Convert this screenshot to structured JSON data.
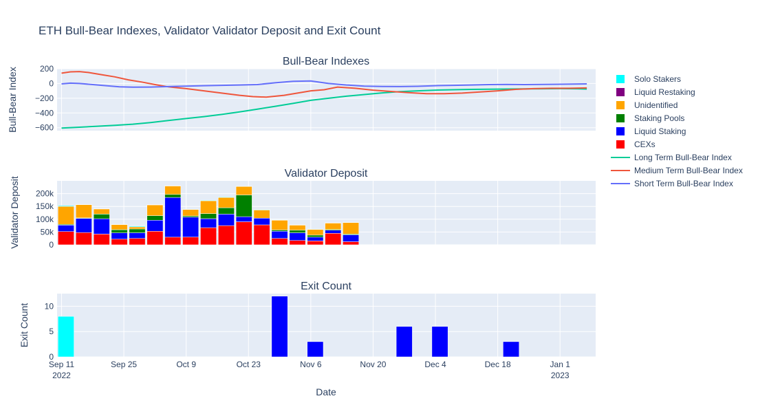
{
  "title": "ETH Bull-Bear Indexes, Validator Validator Deposit and Exit Count",
  "xlabel": "Date",
  "x_ticks": [
    {
      "date": "2022-09-11",
      "line1": "Sep 11",
      "line2": "2022"
    },
    {
      "date": "2022-09-25",
      "line1": "Sep 25",
      "line2": ""
    },
    {
      "date": "2022-10-09",
      "line1": "Oct 9",
      "line2": ""
    },
    {
      "date": "2022-10-23",
      "line1": "Oct 23",
      "line2": ""
    },
    {
      "date": "2022-11-06",
      "line1": "Nov 6",
      "line2": ""
    },
    {
      "date": "2022-11-20",
      "line1": "Nov 20",
      "line2": ""
    },
    {
      "date": "2022-12-04",
      "line1": "Dec 4",
      "line2": ""
    },
    {
      "date": "2022-12-18",
      "line1": "Dec 18",
      "line2": ""
    },
    {
      "date": "2023-01-01",
      "line1": "Jan 1",
      "line2": "2023"
    }
  ],
  "legend": [
    {
      "label": "Solo Stakers",
      "kind": "box",
      "color": "#00ffff"
    },
    {
      "label": "Liquid Restaking",
      "kind": "box",
      "color": "#800080"
    },
    {
      "label": "Unidentified",
      "kind": "box",
      "color": "#ffa500"
    },
    {
      "label": "Staking Pools",
      "kind": "box",
      "color": "#008000"
    },
    {
      "label": "Liquid Staking",
      "kind": "box",
      "color": "#0000ff"
    },
    {
      "label": "CEXs",
      "kind": "box",
      "color": "#ff0000"
    },
    {
      "label": "Long Term Bull-Bear Index",
      "kind": "line",
      "color": "#00cc96"
    },
    {
      "label": "Medium Term Bull-Bear Index",
      "kind": "line",
      "color": "#ef553b"
    },
    {
      "label": "Short Term Bull-Bear Index",
      "kind": "line",
      "color": "#636efa"
    }
  ],
  "chart_data": [
    {
      "type": "line",
      "title": "Bull-Bear Indexes",
      "ylabel": "Bull-Bear Index",
      "ylim": [
        -640,
        200
      ],
      "yticks": [
        200,
        0,
        -200,
        -400,
        -600
      ],
      "grid": true,
      "series": [
        {
          "name": "Long Term Bull-Bear Index",
          "color": "#00cc96",
          "x": [
            "2022-09-11",
            "2022-09-15",
            "2022-09-19",
            "2022-09-23",
            "2022-09-27",
            "2022-10-01",
            "2022-10-05",
            "2022-10-09",
            "2022-10-13",
            "2022-10-17",
            "2022-10-21",
            "2022-10-25",
            "2022-10-29",
            "2022-11-02",
            "2022-11-06",
            "2022-11-10",
            "2022-11-14",
            "2022-11-18",
            "2022-11-22",
            "2022-11-26",
            "2022-11-30",
            "2022-12-04",
            "2022-12-08",
            "2022-12-12",
            "2022-12-16",
            "2022-12-20",
            "2022-12-24",
            "2022-12-28",
            "2023-01-01",
            "2023-01-05",
            "2023-01-07"
          ],
          "values": [
            -605,
            -593,
            -580,
            -568,
            -552,
            -530,
            -503,
            -476,
            -450,
            -420,
            -385,
            -348,
            -310,
            -270,
            -228,
            -200,
            -172,
            -150,
            -128,
            -110,
            -100,
            -90,
            -85,
            -80,
            -78,
            -75,
            -73,
            -72,
            -70,
            -72,
            -75
          ]
        },
        {
          "name": "Medium Term Bull-Bear Index",
          "color": "#ef553b",
          "x": [
            "2022-09-11",
            "2022-09-13",
            "2022-09-15",
            "2022-09-17",
            "2022-09-20",
            "2022-09-23",
            "2022-09-26",
            "2022-09-29",
            "2022-10-02",
            "2022-10-05",
            "2022-10-09",
            "2022-10-13",
            "2022-10-17",
            "2022-10-21",
            "2022-10-24",
            "2022-10-27",
            "2022-10-31",
            "2022-11-03",
            "2022-11-06",
            "2022-11-09",
            "2022-11-12",
            "2022-11-16",
            "2022-11-20",
            "2022-11-24",
            "2022-11-28",
            "2022-12-02",
            "2022-12-06",
            "2022-12-10",
            "2022-12-14",
            "2022-12-18",
            "2022-12-22",
            "2022-12-26",
            "2022-12-30",
            "2023-01-03",
            "2023-01-07"
          ],
          "values": [
            140,
            158,
            162,
            150,
            120,
            90,
            50,
            20,
            -15,
            -45,
            -70,
            -100,
            -130,
            -160,
            -178,
            -185,
            -160,
            -130,
            -100,
            -85,
            -48,
            -65,
            -90,
            -108,
            -125,
            -138,
            -138,
            -130,
            -115,
            -100,
            -80,
            -70,
            -65,
            -65,
            -60
          ]
        },
        {
          "name": "Short Term Bull-Bear Index",
          "color": "#636efa",
          "x": [
            "2022-09-11",
            "2022-09-13",
            "2022-09-15",
            "2022-09-18",
            "2022-09-21",
            "2022-09-24",
            "2022-09-27",
            "2022-10-01",
            "2022-10-05",
            "2022-10-09",
            "2022-10-13",
            "2022-10-17",
            "2022-10-21",
            "2022-10-25",
            "2022-10-29",
            "2022-11-02",
            "2022-11-06",
            "2022-11-10",
            "2022-11-14",
            "2022-11-18",
            "2022-11-22",
            "2022-11-26",
            "2022-11-30",
            "2022-12-04",
            "2022-12-08",
            "2022-12-12",
            "2022-12-16",
            "2022-12-20",
            "2022-12-24",
            "2022-12-28",
            "2023-01-01",
            "2023-01-04",
            "2023-01-07"
          ],
          "values": [
            -5,
            5,
            0,
            -15,
            -30,
            -45,
            -50,
            -48,
            -42,
            -35,
            -30,
            -25,
            -20,
            -15,
            10,
            30,
            35,
            0,
            -20,
            -35,
            -40,
            -42,
            -38,
            -30,
            -25,
            -20,
            -15,
            -12,
            -15,
            -12,
            -10,
            -8,
            -5
          ]
        }
      ]
    },
    {
      "type": "bar",
      "stacked": true,
      "title": "Validator Deposit",
      "ylabel": "Validator Deposit",
      "ylim": [
        0,
        250000
      ],
      "yticks": [
        0,
        50000,
        100000,
        150000,
        200000
      ],
      "ytick_labels": [
        "0",
        "50k",
        "100k",
        "150k",
        "200k"
      ],
      "grid": true,
      "categories": [
        "2022-09-12",
        "2022-09-16",
        "2022-09-20",
        "2022-09-24",
        "2022-09-28",
        "2022-10-02",
        "2022-10-06",
        "2022-10-10",
        "2022-10-14",
        "2022-10-18",
        "2022-10-22",
        "2022-10-26",
        "2022-10-30",
        "2022-11-03",
        "2022-11-07",
        "2022-11-11",
        "2022-11-15",
        "2022-11-19",
        "2022-11-23",
        "2022-11-27",
        "2022-12-01",
        "2022-12-05",
        "2022-12-09",
        "2022-12-13",
        "2022-12-17",
        "2022-12-21",
        "2022-12-25",
        "2022-12-29",
        "2023-01-02"
      ],
      "series": [
        {
          "name": "CEXs",
          "color": "#ff0000",
          "values": [
            52000,
            48000,
            42000,
            22000,
            25000,
            53000,
            30000,
            30000,
            67000,
            75000,
            90000,
            78000,
            25000,
            17000,
            15000,
            45000,
            12000,
            0,
            0,
            0,
            0,
            0,
            0,
            0,
            0,
            0,
            0,
            0,
            0
          ]
        },
        {
          "name": "Liquid Staking",
          "color": "#0000ff",
          "values": [
            25000,
            55000,
            60000,
            25000,
            22000,
            43000,
            155000,
            78000,
            35000,
            45000,
            20000,
            26000,
            28000,
            30000,
            15000,
            12000,
            27000,
            0,
            0,
            0,
            0,
            0,
            0,
            0,
            0,
            0,
            0,
            0,
            0
          ]
        },
        {
          "name": "Staking Pools",
          "color": "#008000",
          "values": [
            3000,
            2000,
            18000,
            12000,
            15000,
            18000,
            12000,
            5000,
            20000,
            25000,
            85000,
            0,
            5000,
            10000,
            8000,
            3000,
            3000,
            0,
            0,
            0,
            0,
            0,
            0,
            0,
            0,
            0,
            0,
            0,
            0
          ]
        },
        {
          "name": "Unidentified",
          "color": "#ffa500",
          "values": [
            70000,
            52000,
            20000,
            20000,
            8000,
            42000,
            33000,
            25000,
            50000,
            40000,
            33000,
            32000,
            38000,
            20000,
            22000,
            25000,
            45000,
            0,
            0,
            0,
            0,
            0,
            0,
            0,
            0,
            0,
            0,
            0,
            0
          ]
        },
        {
          "name": "Liquid Restaking",
          "color": "#800080",
          "values": [
            0,
            0,
            0,
            0,
            0,
            0,
            0,
            0,
            0,
            0,
            0,
            0,
            0,
            0,
            0,
            0,
            0,
            0,
            0,
            0,
            0,
            0,
            0,
            0,
            0,
            0,
            0,
            0,
            0
          ]
        },
        {
          "name": "Solo Stakers",
          "color": "#00ffff",
          "values": [
            3000,
            1000,
            1000,
            1000,
            3000,
            1000,
            1000,
            1000,
            2000,
            2000,
            1000,
            2000,
            1000,
            1000,
            1000,
            1000,
            1000,
            0,
            0,
            0,
            0,
            0,
            0,
            0,
            0,
            0,
            0,
            0,
            0
          ]
        }
      ]
    },
    {
      "type": "bar",
      "title": "Exit Count",
      "ylabel": "Exit Count",
      "ylim": [
        0,
        12.5
      ],
      "yticks": [
        0,
        5,
        10
      ],
      "ytick_labels": [
        "0",
        "5",
        "10"
      ],
      "grid": true,
      "categories": [
        "2022-09-12",
        "2022-10-30",
        "2022-11-07",
        "2022-11-27",
        "2022-12-05",
        "2022-12-21"
      ],
      "series": [
        {
          "name": "Solo Stakers",
          "color": "#00ffff",
          "values": [
            8,
            0,
            0,
            0,
            0,
            0
          ]
        },
        {
          "name": "Liquid Staking",
          "color": "#0000ff",
          "values": [
            0,
            12,
            3,
            6,
            6,
            3
          ]
        }
      ]
    }
  ]
}
